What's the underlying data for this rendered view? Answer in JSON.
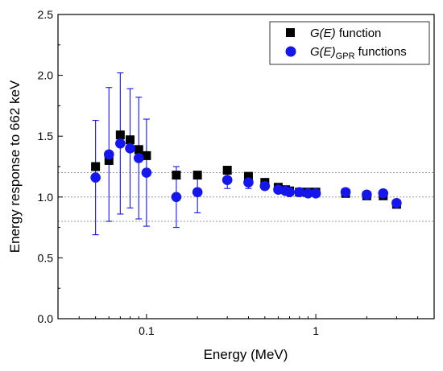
{
  "chart_data": {
    "type": "scatter",
    "title": "",
    "xlabel": "Energy (MeV)",
    "ylabel": "Energy response to 662 keV",
    "x_scale": "log",
    "xlim": [
      0.03,
      5
    ],
    "ylim": [
      0.0,
      2.5
    ],
    "y_ticks": [
      "0.0",
      "0.5",
      "1.0",
      "1.5",
      "2.0",
      "2.5"
    ],
    "x_tick_labels": [
      {
        "value": 0.1,
        "label": "0.1"
      },
      {
        "value": 1,
        "label": "1"
      }
    ],
    "x_minor_ticks": [
      0.04,
      0.05,
      0.06,
      0.07,
      0.08,
      0.09,
      0.2,
      0.3,
      0.4,
      0.5,
      0.6,
      0.7,
      0.8,
      0.9,
      2,
      3,
      4,
      5
    ],
    "reference_lines": [
      0.8,
      1.0,
      1.2
    ],
    "grid": false,
    "legend_position": "top-right",
    "series": [
      {
        "name": "G(E) function",
        "legend_main": "G(E)",
        "legend_suffix": " function",
        "marker": "square",
        "color": "#000000",
        "points": [
          {
            "x": 0.05,
            "y": 1.25
          },
          {
            "x": 0.06,
            "y": 1.3
          },
          {
            "x": 0.07,
            "y": 1.51
          },
          {
            "x": 0.08,
            "y": 1.47
          },
          {
            "x": 0.09,
            "y": 1.39
          },
          {
            "x": 0.1,
            "y": 1.34
          },
          {
            "x": 0.15,
            "y": 1.18
          },
          {
            "x": 0.2,
            "y": 1.18
          },
          {
            "x": 0.3,
            "y": 1.22
          },
          {
            "x": 0.4,
            "y": 1.17
          },
          {
            "x": 0.5,
            "y": 1.12
          },
          {
            "x": 0.6,
            "y": 1.08
          },
          {
            "x": 0.662,
            "y": 1.06
          },
          {
            "x": 0.7,
            "y": 1.05
          },
          {
            "x": 0.8,
            "y": 1.04
          },
          {
            "x": 0.9,
            "y": 1.04
          },
          {
            "x": 1.0,
            "y": 1.04
          },
          {
            "x": 1.5,
            "y": 1.03
          },
          {
            "x": 2.0,
            "y": 1.01
          },
          {
            "x": 2.5,
            "y": 1.01
          },
          {
            "x": 3.0,
            "y": 0.94
          }
        ]
      },
      {
        "name": "G(E)GPR functions",
        "legend_main": "G(E)",
        "legend_sub": "GPR",
        "legend_suffix": " functions",
        "marker": "circle",
        "color": "#1515ee",
        "points": [
          {
            "x": 0.05,
            "y": 1.16,
            "err": 0.47
          },
          {
            "x": 0.06,
            "y": 1.35,
            "err": 0.55
          },
          {
            "x": 0.07,
            "y": 1.44,
            "err": 0.58
          },
          {
            "x": 0.08,
            "y": 1.4,
            "err": 0.49
          },
          {
            "x": 0.09,
            "y": 1.32,
            "err": 0.5
          },
          {
            "x": 0.1,
            "y": 1.2,
            "err": 0.44
          },
          {
            "x": 0.15,
            "y": 1.0,
            "err": 0.25
          },
          {
            "x": 0.2,
            "y": 1.04,
            "err": 0.17
          },
          {
            "x": 0.3,
            "y": 1.14,
            "err": 0.07
          },
          {
            "x": 0.4,
            "y": 1.12,
            "err": 0.05
          },
          {
            "x": 0.5,
            "y": 1.09,
            "err": 0.03
          },
          {
            "x": 0.6,
            "y": 1.06,
            "err": 0.02
          },
          {
            "x": 0.662,
            "y": 1.05,
            "err": 0.02
          },
          {
            "x": 0.7,
            "y": 1.04,
            "err": 0.02
          },
          {
            "x": 0.8,
            "y": 1.04,
            "err": 0.02
          },
          {
            "x": 0.9,
            "y": 1.03,
            "err": 0.02
          },
          {
            "x": 1.0,
            "y": 1.03,
            "err": 0.02
          },
          {
            "x": 1.5,
            "y": 1.04,
            "err": 0.02
          },
          {
            "x": 2.0,
            "y": 1.02,
            "err": 0.02
          },
          {
            "x": 2.5,
            "y": 1.03,
            "err": 0.02
          },
          {
            "x": 3.0,
            "y": 0.95,
            "err": 0.02
          }
        ]
      }
    ]
  }
}
